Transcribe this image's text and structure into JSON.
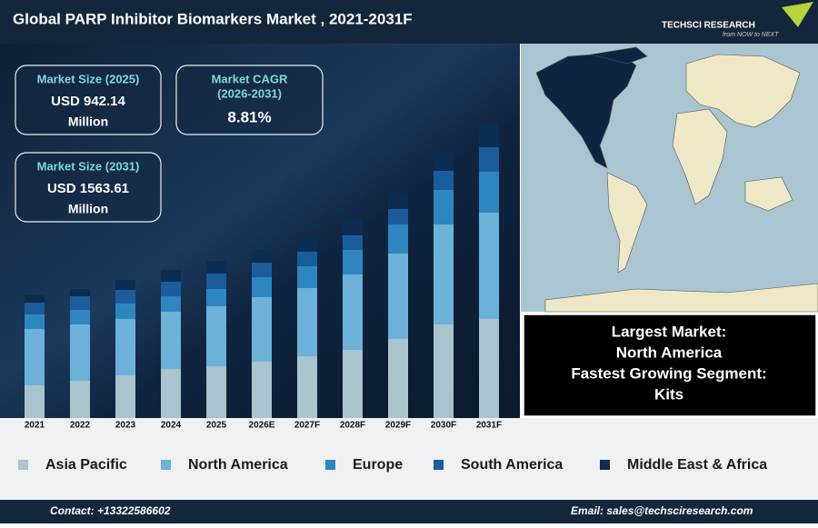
{
  "chart_data": {
    "type": "stacked-bar",
    "title": "Global PARP Inhibitor Biomarkers Market , 2021-2031F",
    "categories": [
      "2021",
      "2022",
      "2023",
      "2024",
      "2025",
      "2026E",
      "2027F",
      "2028F",
      "2029F",
      "2030F",
      "2031F"
    ],
    "series": [
      {
        "name": "Asia Pacific",
        "color": "#a9c3cf",
        "values": [
          36,
          41,
          47,
          54,
          57,
          62,
          68,
          75,
          87,
          103,
          109
        ]
      },
      {
        "name": "North America",
        "color": "#6cb2d8",
        "values": [
          62,
          62,
          62,
          63,
          66,
          71,
          75,
          83,
          94,
          110,
          117
        ]
      },
      {
        "name": "Europe",
        "color": "#2e86c1",
        "values": [
          16,
          16,
          17,
          17,
          19,
          22,
          24,
          27,
          32,
          38,
          45
        ]
      },
      {
        "name": "South America",
        "color": "#1b5c9c",
        "values": [
          13,
          15,
          15,
          16,
          17,
          16,
          16,
          16,
          17,
          21,
          27
        ]
      },
      {
        "name": "Middle East & Africa",
        "color": "#0c2d52",
        "values": [
          8,
          8,
          11,
          13,
          14,
          15,
          16,
          17,
          18,
          20,
          26
        ]
      }
    ],
    "ylim": [
      0,
      330
    ],
    "legend": "bottom"
  },
  "cards": [
    {
      "label": "Market Size (2025)",
      "value": "USD 942.14",
      "unit": "Million"
    },
    {
      "label": "Market CAGR",
      "sublabel": "(2026-2031)",
      "value": "8.81%"
    },
    {
      "label": "Market Size (2031)",
      "value": "USD 1563.61",
      "unit": "Million"
    }
  ],
  "highlights": [
    "Largest Market:",
    "North America",
    "Fastest Growing Segment:",
    "Kits"
  ],
  "logo": {
    "name": "TECHSCI RESEARCH",
    "tagline": "from NOW to NEXT"
  },
  "footer": {
    "contact": "Contact: +13322586602",
    "email": "Email: sales@techsciresearch.com"
  }
}
